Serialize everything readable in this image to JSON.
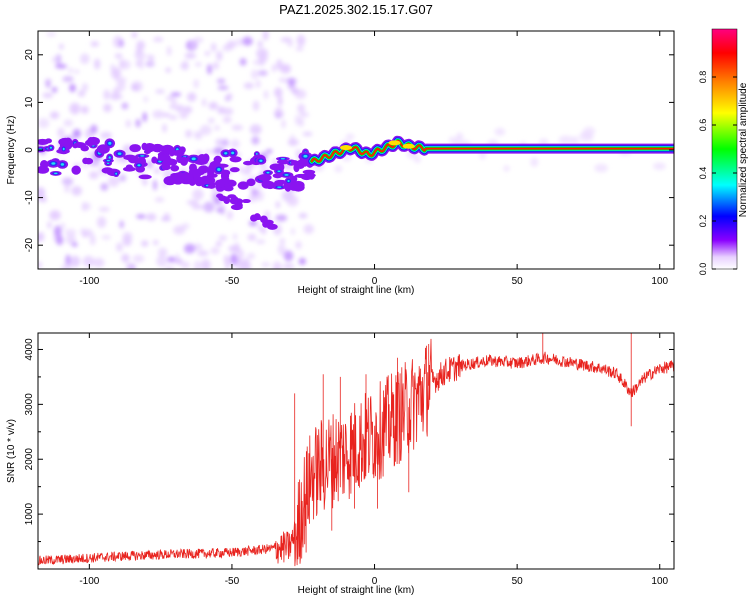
{
  "figure": {
    "title": "PAZ1.2025.302.15.17.G07"
  },
  "chart_data": [
    {
      "type": "heatmap",
      "xlabel": "Height of straight line (km)",
      "ylabel": "Frequency (Hz)",
      "xlim": [
        -118,
        105
      ],
      "ylim": [
        -25,
        25
      ],
      "xticks": [
        -100,
        -50,
        0,
        50,
        100
      ],
      "yticks": [
        -20,
        -10,
        0,
        10,
        20
      ],
      "colorbar": {
        "label": "Normalized spectral amplitude",
        "range": [
          0,
          1
        ],
        "ticks": [
          0.0,
          0.2,
          0.4,
          0.6,
          0.8
        ],
        "tick_labels": [
          "0.0",
          "0.2",
          "0.4",
          "0.6",
          "0.8"
        ],
        "colors": [
          "#ffffff",
          "#e8d0ff",
          "#8a00ff",
          "#0000ff",
          "#00ffff",
          "#00ff00",
          "#ffff00",
          "#ff8000",
          "#ff0000",
          "#ff0080"
        ]
      },
      "ridge": [
        {
          "x": -118,
          "f": -1.5
        },
        {
          "x": -100,
          "f": -1.5
        },
        {
          "x": -80,
          "f": -2.5
        },
        {
          "x": -60,
          "f": -4
        },
        {
          "x": -45,
          "f": -4
        },
        {
          "x": -35,
          "f": -4.5
        },
        {
          "x": -28,
          "f": -5
        },
        {
          "x": -22,
          "f": -2.5
        },
        {
          "x": -15,
          "f": -1
        },
        {
          "x": -8,
          "f": 0.5
        },
        {
          "x": -2,
          "f": -1
        },
        {
          "x": 2,
          "f": 0
        },
        {
          "x": 8,
          "f": 1.5
        },
        {
          "x": 12,
          "f": 0.8
        },
        {
          "x": 18,
          "f": 0.3
        },
        {
          "x": 105,
          "f": 0.3
        }
      ],
      "secondary_branch": [
        {
          "x": -75,
          "f": -2
        },
        {
          "x": -60,
          "f": -6
        },
        {
          "x": -50,
          "f": -10
        },
        {
          "x": -40,
          "f": -14
        },
        {
          "x": -35,
          "f": -16
        }
      ]
    },
    {
      "type": "line",
      "xlabel": "Height of straight line (km)",
      "ylabel": "SNR (10 * v/v)",
      "xlim": [
        -118,
        105
      ],
      "ylim": [
        0,
        4300
      ],
      "xticks": [
        -100,
        -50,
        0,
        50,
        100
      ],
      "yticks": [
        1000,
        2000,
        3000,
        4000
      ],
      "color": "#e8231e",
      "series": [
        {
          "name": "SNR",
          "x": [
            -118,
            -110,
            -100,
            -90,
            -80,
            -70,
            -60,
            -50,
            -40,
            -35,
            -30,
            -27,
            -25,
            -22,
            -20,
            -15,
            -10,
            -5,
            0,
            5,
            10,
            15,
            20,
            25,
            30,
            40,
            50,
            55,
            60,
            70,
            80,
            85,
            88,
            90,
            95,
            100,
            105
          ],
          "y": [
            150,
            170,
            200,
            230,
            250,
            270,
            280,
            300,
            350,
            380,
            400,
            700,
            1200,
            1700,
            1800,
            2000,
            2100,
            2300,
            2450,
            2650,
            2850,
            3100,
            3400,
            3600,
            3700,
            3800,
            3750,
            3800,
            3850,
            3750,
            3650,
            3550,
            3350,
            3200,
            3500,
            3650,
            3700
          ]
        }
      ],
      "peaks": [
        {
          "x": -28,
          "y": 3200
        },
        {
          "x": -18,
          "y": 3550
        },
        {
          "x": -12,
          "y": 3500
        },
        {
          "x": -3,
          "y": 3550
        },
        {
          "x": 8,
          "y": 3850
        },
        {
          "x": 19,
          "y": 4100
        },
        {
          "x": 59,
          "y": 4300
        },
        {
          "x": 90,
          "y": 4300
        }
      ],
      "dips": [
        {
          "x": -24,
          "y": 300
        },
        {
          "x": -15,
          "y": 700
        },
        {
          "x": -7,
          "y": 1100
        },
        {
          "x": 1,
          "y": 1100
        },
        {
          "x": 12,
          "y": 1400
        },
        {
          "x": 90,
          "y": 2600
        }
      ]
    }
  ]
}
